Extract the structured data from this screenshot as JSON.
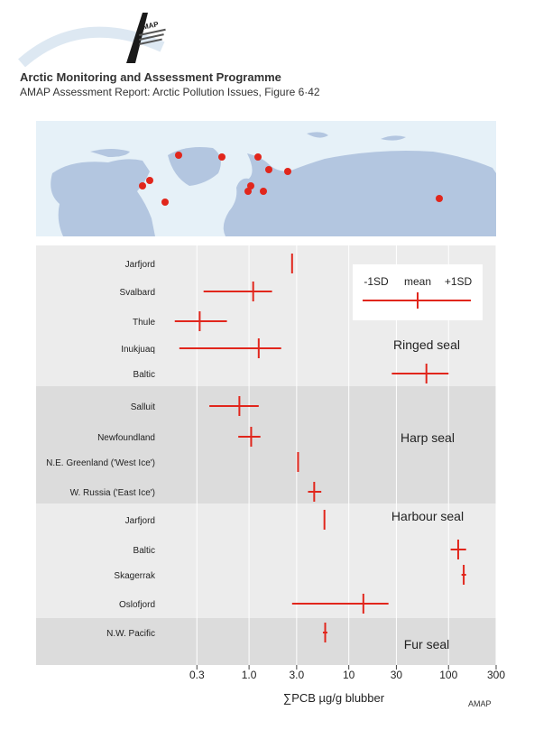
{
  "header": {
    "logo_text": "AMAP",
    "org_title": "Arctic Monitoring and Assessment Programme",
    "report_subtitle": "AMAP Assessment Report: Arctic Pollution Issues, Figure 6·42"
  },
  "footer": {
    "credit": "AMAP"
  },
  "colors": {
    "mark": "#e1261c",
    "site_dot": "#e1261c",
    "land": "#b3c6e0",
    "sea": "#e6f1f8",
    "band_light": "#ececec",
    "band_dark": "#dcdcdc"
  },
  "chart_data": {
    "type": "interval",
    "x_scale": "log",
    "xlim": [
      0.15,
      300
    ],
    "xticks": [
      0.3,
      1.0,
      3.0,
      10,
      30,
      100,
      300
    ],
    "xtick_labels": [
      "0.3",
      "1.0",
      "3.0",
      "10",
      "30",
      "100",
      "300"
    ],
    "xlabel": "∑PCB µg/g blubber",
    "grid": "vertical",
    "legend": {
      "placement": "top-right",
      "minus_label": "-1SD",
      "mean_label": "mean",
      "plus_label": "+1SD"
    },
    "groups": [
      {
        "name": "Ringed seal",
        "rows": [
          {
            "site": "Jarfjord",
            "mean": 2.7,
            "minus_sd": 2.7,
            "plus_sd": 2.7
          },
          {
            "site": "Svalbard",
            "mean": 1.1,
            "minus_sd": 0.35,
            "plus_sd": 1.7
          },
          {
            "site": "Thule",
            "mean": 0.32,
            "minus_sd": 0.18,
            "plus_sd": 0.6
          },
          {
            "site": "Inukjuaq",
            "mean": 1.25,
            "minus_sd": 0.2,
            "plus_sd": 2.1
          },
          {
            "site": "Baltic",
            "mean": 60,
            "minus_sd": 27,
            "plus_sd": 100
          }
        ]
      },
      {
        "name": "Harp seal",
        "rows": [
          {
            "site": "Salluit",
            "mean": 0.8,
            "minus_sd": 0.4,
            "plus_sd": 1.25
          },
          {
            "site": "Newfoundland",
            "mean": 1.05,
            "minus_sd": 0.78,
            "plus_sd": 1.3
          },
          {
            "site": "N.E. Greenland ('West Ice')",
            "mean": 3.1,
            "minus_sd": 3.1,
            "plus_sd": 3.1
          },
          {
            "site": "W. Russia ('East Ice')",
            "mean": 4.5,
            "minus_sd": 3.9,
            "plus_sd": 5.3
          }
        ]
      },
      {
        "name": "Harbour seal",
        "rows": [
          {
            "site": "Jarfjord",
            "mean": 5.7,
            "minus_sd": 5.7,
            "plus_sd": 5.7
          },
          {
            "site": "Baltic",
            "mean": 125,
            "minus_sd": 105,
            "plus_sd": 150
          },
          {
            "site": "Skagerrak",
            "mean": 142,
            "minus_sd": 135,
            "plus_sd": 150
          },
          {
            "site": "Oslofjord",
            "mean": 14,
            "minus_sd": 2.7,
            "plus_sd": 25
          }
        ]
      },
      {
        "name": "Fur seal",
        "rows": [
          {
            "site": "N.W. Pacific",
            "mean": 5.8,
            "minus_sd": 5.5,
            "plus_sd": 6.1
          }
        ]
      }
    ]
  }
}
